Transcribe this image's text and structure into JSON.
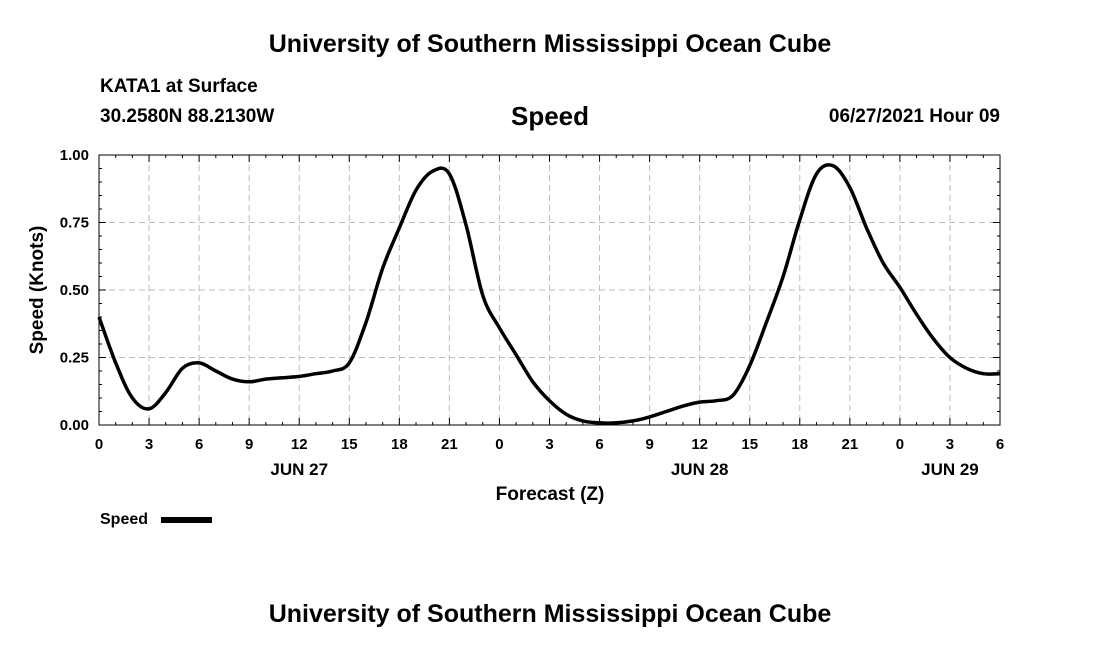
{
  "header": {
    "title": "University of Southern Mississippi Ocean Cube",
    "station": "KATA1 at Surface",
    "coords": "30.2580N  88.2130W",
    "variable": "Speed",
    "datetime": "06/27/2021 Hour 09"
  },
  "footer": {
    "title": "University of Southern Mississippi Ocean Cube"
  },
  "chart_data": {
    "type": "line",
    "xlabel": "Forecast (Z)",
    "ylabel": "Speed (Knots)",
    "xlim": [
      0,
      54
    ],
    "ylim": [
      0,
      1.0
    ],
    "x_ticks": [
      0,
      3,
      6,
      9,
      12,
      15,
      18,
      21,
      24,
      27,
      30,
      33,
      36,
      39,
      42,
      45,
      48,
      51,
      54
    ],
    "x_tick_labels": [
      "0",
      "3",
      "6",
      "9",
      "12",
      "15",
      "18",
      "21",
      "0",
      "3",
      "6",
      "9",
      "12",
      "15",
      "18",
      "21",
      "0",
      "3",
      "6"
    ],
    "date_labels": [
      {
        "label": "JUN 27",
        "x": 12
      },
      {
        "label": "JUN 28",
        "x": 36
      },
      {
        "label": "JUN 29",
        "x": 51
      }
    ],
    "y_ticks": [
      0,
      0.25,
      0.5,
      0.75,
      1.0
    ],
    "y_tick_labels": [
      "0.00",
      "0.25",
      "0.50",
      "0.75",
      "1.00"
    ],
    "grid": true,
    "legend": {
      "placement": "bottom-left",
      "entries": [
        "Speed"
      ]
    },
    "series": [
      {
        "name": "Speed",
        "color": "#000000",
        "x": [
          0,
          1,
          2,
          3,
          4,
          5,
          6,
          7,
          8,
          9,
          10,
          11,
          12,
          13,
          14,
          15,
          16,
          17,
          18,
          19,
          20,
          21,
          22,
          23,
          24,
          25,
          26,
          27,
          28,
          29,
          30,
          31,
          32,
          33,
          34,
          35,
          36,
          37,
          38,
          39,
          40,
          41,
          42,
          43,
          44,
          45,
          46,
          47,
          48,
          49,
          50,
          51,
          52,
          53,
          54
        ],
        "y": [
          0.4,
          0.23,
          0.1,
          0.06,
          0.12,
          0.21,
          0.23,
          0.2,
          0.17,
          0.16,
          0.17,
          0.175,
          0.18,
          0.19,
          0.2,
          0.23,
          0.38,
          0.58,
          0.73,
          0.87,
          0.94,
          0.93,
          0.74,
          0.48,
          0.36,
          0.26,
          0.16,
          0.09,
          0.04,
          0.015,
          0.008,
          0.008,
          0.015,
          0.03,
          0.05,
          0.07,
          0.085,
          0.09,
          0.11,
          0.22,
          0.38,
          0.55,
          0.76,
          0.93,
          0.96,
          0.88,
          0.73,
          0.6,
          0.51,
          0.41,
          0.32,
          0.25,
          0.21,
          0.19,
          0.19
        ]
      }
    ]
  }
}
